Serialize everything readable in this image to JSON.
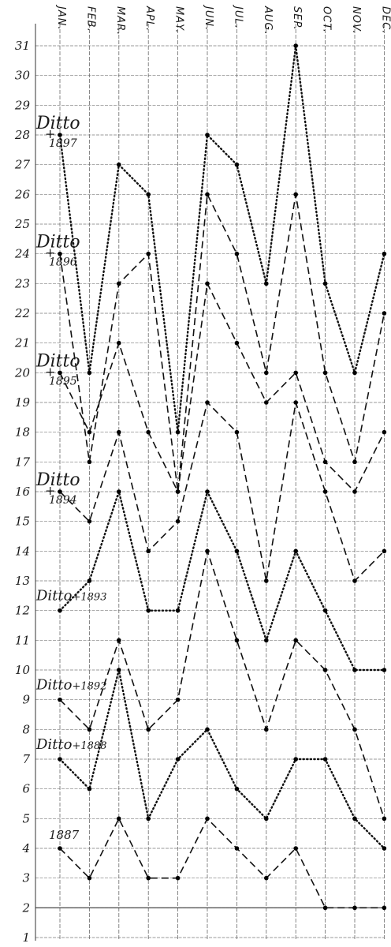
{
  "chart_data": {
    "type": "line",
    "categories": [
      "JAN.",
      "FEB.",
      "MAR.",
      "APL.",
      "MAY.",
      "JUN.",
      "JUL.",
      "AUG.",
      "SEP.",
      "OCT.",
      "NOV.",
      "DEC."
    ],
    "y_ticks": [
      "1",
      "2",
      "3",
      "4",
      "5",
      "6",
      "7",
      "8",
      "9",
      "10",
      "11",
      "12",
      "13",
      "14",
      "15",
      "16",
      "17",
      "18",
      "19",
      "20",
      "21",
      "22",
      "23",
      "24",
      "25",
      "26",
      "27",
      "28",
      "29",
      "30",
      "31"
    ],
    "ylim": [
      1,
      31
    ],
    "grid": true,
    "series": [
      {
        "name": "Ditto 1897",
        "style": "dotted",
        "values": [
          28,
          20,
          27,
          26,
          18,
          28,
          27,
          23,
          31,
          23,
          20,
          24
        ]
      },
      {
        "name": "Ditto 1896",
        "style": "dashed",
        "values": [
          24,
          17,
          23,
          24,
          16,
          26,
          24,
          20,
          26,
          20,
          17,
          22
        ]
      },
      {
        "name": "Ditto 1895",
        "style": "dashed",
        "values": [
          20,
          18,
          21,
          18,
          16,
          23,
          21,
          19,
          20,
          17,
          16,
          18
        ]
      },
      {
        "name": "Ditto 1894",
        "style": "dashed",
        "values": [
          16,
          15,
          18,
          14,
          15,
          19,
          18,
          13,
          19,
          16,
          13,
          14
        ]
      },
      {
        "name": "Ditto 1893",
        "style": "dotted",
        "values": [
          12,
          13,
          16,
          12,
          12,
          16,
          14,
          11,
          14,
          12,
          10,
          10
        ]
      },
      {
        "name": "Ditto 1892",
        "style": "dashed",
        "values": [
          9,
          8,
          11,
          8,
          9,
          14,
          11,
          8,
          11,
          10,
          8,
          5
        ]
      },
      {
        "name": "Ditto 1888",
        "style": "dotted",
        "values": [
          7,
          6,
          10,
          5,
          7,
          8,
          6,
          5,
          7,
          7,
          5,
          4
        ]
      },
      {
        "name": "1887",
        "style": "dashed",
        "values": [
          4,
          3,
          5,
          3,
          3,
          5,
          4,
          3,
          4,
          2,
          2,
          2
        ]
      }
    ]
  }
}
